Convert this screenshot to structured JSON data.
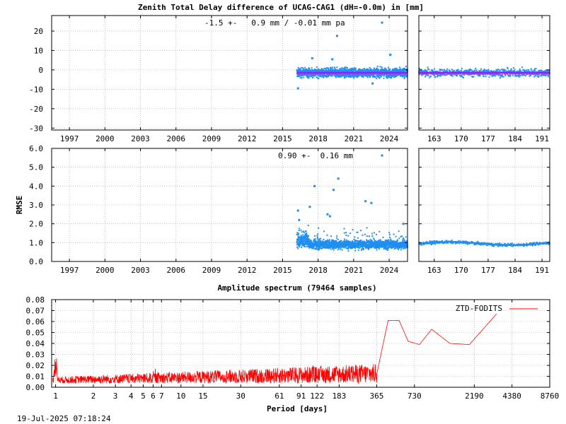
{
  "title": "Zenith Total Delay difference of UCAG-CAG1 (dH=-0.0m) in [mm]",
  "footer_timestamp": "19-Jul-2025 07:18:24",
  "colors": {
    "points": "#1f8ff0",
    "mean_line": "#ff00ff",
    "mean_line_inner": "#2040ff",
    "spectrum": "#ff0000",
    "grid": "#a0a0a0"
  },
  "chart_data": [
    {
      "id": "ztd-difference",
      "type": "scatter",
      "annotation": "-1.5 +-   0.9 mm / -0.01 mm pa",
      "xlabel": "",
      "ylabel": "",
      "xlim": [
        1995.5,
        2025.55
      ],
      "ylim": [
        -31,
        28
      ],
      "x_ticks": [
        1997,
        2000,
        2003,
        2006,
        2009,
        2012,
        2015,
        2018,
        2021,
        2024
      ],
      "y_ticks": [
        20,
        10,
        0,
        -10,
        -20,
        -30
      ],
      "grid": true,
      "data_range": [
        2016.2,
        2025.55
      ],
      "series": [
        {
          "values_summary": {
            "mean": -1.5,
            "stddev": 0.9
          }
        }
      ],
      "outliers": [
        {
          "x": 2019.6,
          "y": 17.5
        },
        {
          "x": 2024.1,
          "y": 7.8
        },
        {
          "x": 2017.5,
          "y": 6.0
        },
        {
          "x": 2019.2,
          "y": 5.5
        },
        {
          "x": 2016.3,
          "y": -9.5
        },
        {
          "x": 2022.6,
          "y": -7.0
        }
      ]
    },
    {
      "id": "ztd-difference-zoom",
      "type": "scatter",
      "xlim": [
        159,
        193
      ],
      "ylim": [
        -31,
        28
      ],
      "x_ticks": [
        163,
        170,
        177,
        184,
        191
      ],
      "grid": true,
      "data_range": [
        159,
        193
      ],
      "series": [
        {
          "values_summary": {
            "mean": -1.5,
            "stddev": 0.9
          }
        }
      ]
    },
    {
      "id": "rmse",
      "type": "scatter",
      "annotation": "0.90 +-  0.16 mm",
      "ylabel": "RMSE",
      "xlim": [
        1995.5,
        2025.55
      ],
      "ylim": [
        0,
        6
      ],
      "x_ticks": [
        1997,
        2000,
        2003,
        2006,
        2009,
        2012,
        2015,
        2018,
        2021,
        2024
      ],
      "y_ticks": [
        "6.0",
        "5.0",
        "4.0",
        "3.0",
        "2.0",
        "1.0",
        "0.0"
      ],
      "grid": true,
      "data_range": [
        2016.2,
        2025.55
      ],
      "outliers": [
        {
          "x": 2017.7,
          "y": 4.0
        },
        {
          "x": 2019.3,
          "y": 3.8
        },
        {
          "x": 2019.7,
          "y": 4.4
        },
        {
          "x": 2022.0,
          "y": 3.2
        },
        {
          "x": 2022.5,
          "y": 3.1
        },
        {
          "x": 2017.3,
          "y": 2.9
        },
        {
          "x": 2016.3,
          "y": 2.7
        },
        {
          "x": 2018.8,
          "y": 2.5
        },
        {
          "x": 2019.0,
          "y": 2.4
        },
        {
          "x": 2025.2,
          "y": 2.0
        },
        {
          "x": 2016.4,
          "y": 2.2
        }
      ]
    },
    {
      "id": "rmse-zoom",
      "type": "scatter",
      "xlim": [
        159,
        193
      ],
      "ylim": [
        0,
        6
      ],
      "x_ticks": [
        163,
        170,
        177,
        184,
        191
      ],
      "grid": true,
      "data_range": [
        159,
        193
      ]
    },
    {
      "id": "amplitude-spectrum",
      "type": "line",
      "title": "Amplitude spectrum (79464 samples)",
      "xlabel": "Period [days]",
      "x_scale": "log",
      "xlim": [
        0.93,
        8760
      ],
      "ylim": [
        0,
        0.08
      ],
      "x_ticks": [
        "1",
        "2",
        "3",
        "4",
        "5",
        "6",
        "7",
        "10",
        "15",
        "30",
        "61",
        "91",
        "122",
        "183",
        "365",
        "730",
        "2190",
        "4380",
        "8760"
      ],
      "y_ticks": [
        "0.08",
        "0.07",
        "0.06",
        "0.05",
        "0.04",
        "0.03",
        "0.02",
        "0.01",
        "0.00"
      ],
      "grid": true,
      "legend_position": "top-right",
      "series": [
        {
          "name": "ZTD-FODITS",
          "x": [
            365,
            450,
            550,
            650,
            800,
            1000,
            1400,
            2000,
            3300
          ],
          "y": [
            0.012,
            0.061,
            0.061,
            0.042,
            0.039,
            0.053,
            0.04,
            0.039,
            0.067
          ]
        }
      ]
    }
  ]
}
